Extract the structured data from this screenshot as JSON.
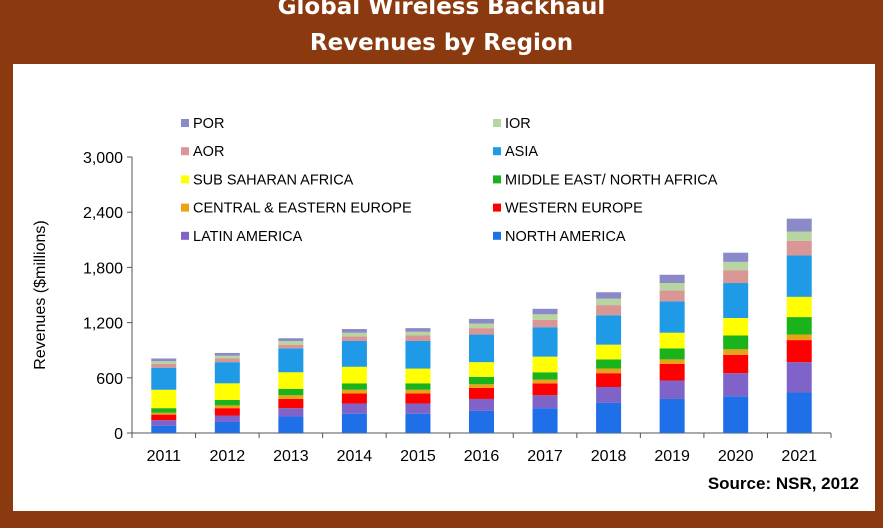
{
  "colors": {
    "frame": "#8b3a0f",
    "POR": "#8b8ac9",
    "IOR": "#b7d5a0",
    "AOR": "#d99694",
    "ASIA": "#1e9ae6",
    "SUB SAHARAN AFRICA": "#ffff00",
    "MIDDLE EAST/ NORTH AFRICA": "#1bb31b",
    "CENTRAL & EASTERN EUROPE": "#e8a317",
    "WESTERN EUROPE": "#ff0000",
    "LATIN AMERICA": "#7f63c9",
    "NORTH AMERICA": "#1f6fe8"
  },
  "chart_data": {
    "type": "bar",
    "stacked": true,
    "title": "Global Wireless Backhaul Revenues by Region",
    "title_lines": [
      "Global Wireless Backhaul",
      "Revenues by Region"
    ],
    "ylabel": "Revenues  ($millions)",
    "xlabel": "",
    "source": "Source: NSR, 2012",
    "ylim": [
      0,
      3000
    ],
    "yticks": [
      0,
      600,
      1200,
      1800,
      2400,
      3000
    ],
    "ytick_labels": [
      "0",
      "600",
      "1,200",
      "1,800",
      "2,400",
      "3,000"
    ],
    "grid": false,
    "legend_position": "top-left, inside plot, two columns",
    "legend_order": [
      "POR",
      "IOR",
      "AOR",
      "ASIA",
      "SUB SAHARAN AFRICA",
      "MIDDLE EAST/ NORTH AFRICA",
      "CENTRAL & EASTERN EUROPE",
      "WESTERN EUROPE",
      "LATIN AMERICA",
      "NORTH AMERICA"
    ],
    "categories": [
      "2011",
      "2012",
      "2013",
      "2014",
      "2015",
      "2016",
      "2017",
      "2018",
      "2019",
      "2020",
      "2021"
    ],
    "series": [
      {
        "name": "NORTH AMERICA",
        "values": [
          80,
          120,
          180,
          210,
          210,
          240,
          270,
          330,
          370,
          400,
          440
        ]
      },
      {
        "name": "LATIN AMERICA",
        "values": [
          60,
          70,
          90,
          110,
          110,
          130,
          140,
          170,
          200,
          250,
          330
        ]
      },
      {
        "name": "WESTERN EUROPE",
        "values": [
          60,
          80,
          100,
          110,
          110,
          120,
          130,
          150,
          180,
          200,
          240
        ]
      },
      {
        "name": "CENTRAL & EASTERN EUROPE",
        "values": [
          20,
          30,
          40,
          40,
          40,
          40,
          40,
          50,
          50,
          60,
          60
        ]
      },
      {
        "name": "MIDDLE EAST/ NORTH AFRICA",
        "values": [
          50,
          60,
          70,
          70,
          70,
          80,
          80,
          100,
          120,
          150,
          190
        ]
      },
      {
        "name": "SUB SAHARAN AFRICA",
        "values": [
          200,
          180,
          180,
          180,
          160,
          160,
          170,
          160,
          170,
          190,
          220
        ]
      },
      {
        "name": "ASIA",
        "values": [
          240,
          230,
          260,
          280,
          300,
          300,
          320,
          320,
          340,
          380,
          450
        ]
      },
      {
        "name": "AOR",
        "values": [
          40,
          40,
          40,
          50,
          60,
          70,
          80,
          110,
          120,
          140,
          160
        ]
      },
      {
        "name": "IOR",
        "values": [
          30,
          30,
          40,
          40,
          40,
          50,
          60,
          70,
          80,
          90,
          100
        ]
      },
      {
        "name": "POR",
        "values": [
          30,
          30,
          30,
          40,
          40,
          50,
          60,
          70,
          90,
          100,
          140
        ]
      }
    ]
  }
}
